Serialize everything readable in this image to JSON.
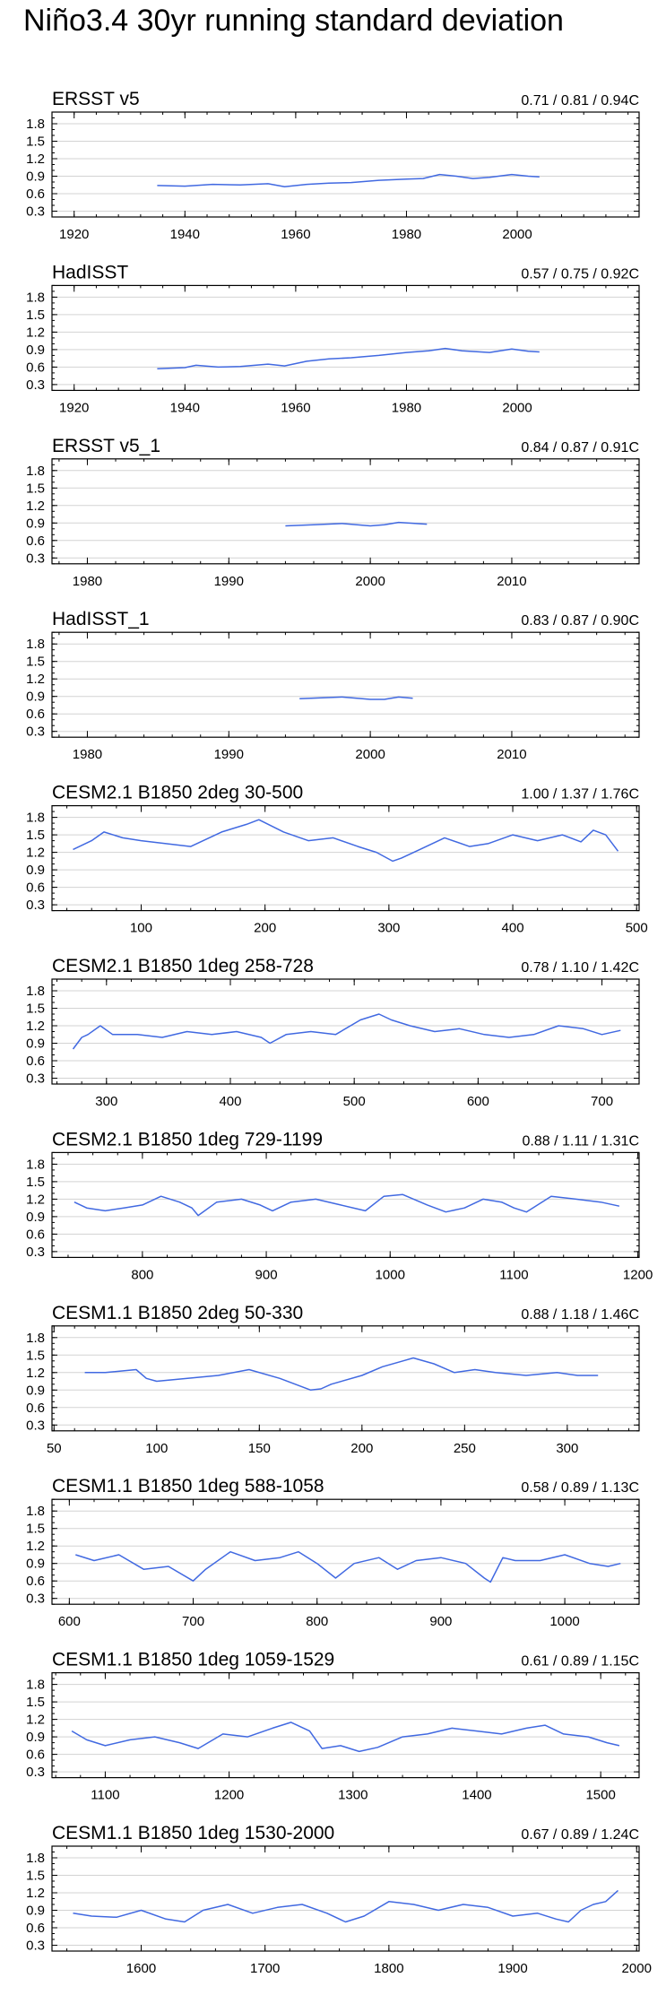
{
  "title": "Niño3.4 30yr running standard deviation",
  "line_color": "#4169e1",
  "grid_color": "#d3d3d3",
  "chart_data": [
    {
      "type": "line",
      "title": "ERSST v5",
      "stats": "0.71 / 0.81 / 0.94C",
      "xlim": [
        1916,
        2022
      ],
      "xticks": [
        1920,
        1940,
        1960,
        1980,
        2000
      ],
      "ylim": [
        0.2,
        2.0
      ],
      "yticks": [
        "0.3",
        "0.6",
        "0.9",
        "1.2",
        "1.5",
        "1.8"
      ],
      "x": [
        1935,
        1940,
        1945,
        1950,
        1955,
        1958,
        1962,
        1966,
        1970,
        1975,
        1980,
        1983,
        1986,
        1989,
        1992,
        1995,
        1999,
        2002,
        2004
      ],
      "y": [
        0.74,
        0.73,
        0.76,
        0.75,
        0.77,
        0.72,
        0.76,
        0.78,
        0.79,
        0.83,
        0.85,
        0.86,
        0.93,
        0.9,
        0.86,
        0.88,
        0.93,
        0.9,
        0.89
      ]
    },
    {
      "type": "line",
      "title": "HadISST",
      "stats": "0.57 / 0.75 / 0.92C",
      "xlim": [
        1916,
        2022
      ],
      "xticks": [
        1920,
        1940,
        1960,
        1980,
        2000
      ],
      "ylim": [
        0.2,
        2.0
      ],
      "yticks": [
        "0.3",
        "0.6",
        "0.9",
        "1.2",
        "1.5",
        "1.8"
      ],
      "x": [
        1935,
        1940,
        1942,
        1946,
        1950,
        1955,
        1958,
        1962,
        1966,
        1970,
        1975,
        1980,
        1984,
        1987,
        1990,
        1995,
        1999,
        2002,
        2004
      ],
      "y": [
        0.57,
        0.59,
        0.63,
        0.6,
        0.61,
        0.65,
        0.62,
        0.7,
        0.74,
        0.76,
        0.8,
        0.85,
        0.88,
        0.92,
        0.88,
        0.85,
        0.91,
        0.87,
        0.86
      ]
    },
    {
      "type": "line",
      "title": "ERSST v5_1",
      "stats": "0.84 / 0.87 / 0.91C",
      "xlim": [
        1977.5,
        2019
      ],
      "xticks": [
        1980,
        1990,
        2000,
        2010
      ],
      "ylim": [
        0.2,
        2.0
      ],
      "yticks": [
        "0.3",
        "0.6",
        "0.9",
        "1.2",
        "1.5",
        "1.8"
      ],
      "x": [
        1994,
        1996,
        1998,
        2000,
        2001,
        2002,
        2004
      ],
      "y": [
        0.85,
        0.87,
        0.89,
        0.85,
        0.87,
        0.91,
        0.88
      ]
    },
    {
      "type": "line",
      "title": "HadISST_1",
      "stats": "0.83 / 0.87 / 0.90C",
      "xlim": [
        1977.5,
        2019
      ],
      "xticks": [
        1980,
        1990,
        2000,
        2010
      ],
      "ylim": [
        0.2,
        2.0
      ],
      "yticks": [
        "0.3",
        "0.6",
        "0.9",
        "1.2",
        "1.5",
        "1.8"
      ],
      "x": [
        1995,
        1997,
        1998,
        2000,
        2001,
        2002,
        2003
      ],
      "y": [
        0.86,
        0.88,
        0.89,
        0.85,
        0.85,
        0.89,
        0.87
      ]
    },
    {
      "type": "line",
      "title": "CESM2.1 B1850 2deg 30-500",
      "stats": "1.00 / 1.37 / 1.76C",
      "xlim": [
        28,
        502
      ],
      "xticks": [
        100,
        200,
        300,
        400,
        500
      ],
      "ylim": [
        0.2,
        2.0
      ],
      "yticks": [
        "0.3",
        "0.6",
        "0.9",
        "1.2",
        "1.5",
        "1.8"
      ],
      "x": [
        45,
        60,
        70,
        85,
        100,
        120,
        140,
        165,
        185,
        195,
        215,
        235,
        255,
        275,
        290,
        303,
        310,
        325,
        345,
        365,
        380,
        400,
        420,
        440,
        455,
        465,
        475,
        485
      ],
      "y": [
        1.25,
        1.4,
        1.55,
        1.45,
        1.4,
        1.35,
        1.3,
        1.55,
        1.68,
        1.76,
        1.55,
        1.4,
        1.45,
        1.3,
        1.2,
        1.05,
        1.1,
        1.25,
        1.45,
        1.3,
        1.35,
        1.5,
        1.4,
        1.5,
        1.38,
        1.58,
        1.5,
        1.22
      ]
    },
    {
      "type": "line",
      "title": "CESM2.1 B1850 1deg 258-728",
      "stats": "0.78 / 1.10 / 1.42C",
      "xlim": [
        256,
        730
      ],
      "xticks": [
        300,
        400,
        500,
        600,
        700
      ],
      "ylim": [
        0.2,
        2.0
      ],
      "yticks": [
        "0.3",
        "0.6",
        "0.9",
        "1.2",
        "1.5",
        "1.8"
      ],
      "x": [
        273,
        280,
        285,
        295,
        305,
        325,
        345,
        365,
        385,
        405,
        425,
        432,
        445,
        465,
        485,
        505,
        520,
        530,
        545,
        565,
        585,
        605,
        625,
        645,
        665,
        685,
        700,
        715
      ],
      "y": [
        0.8,
        1.0,
        1.05,
        1.2,
        1.05,
        1.05,
        1.0,
        1.1,
        1.05,
        1.1,
        1.0,
        0.9,
        1.05,
        1.1,
        1.05,
        1.3,
        1.4,
        1.3,
        1.2,
        1.1,
        1.15,
        1.05,
        1.0,
        1.05,
        1.2,
        1.15,
        1.05,
        1.12
      ]
    },
    {
      "type": "line",
      "title": "CESM2.1 B1850 1deg 729-1199",
      "stats": "0.88 / 1.11 / 1.31C",
      "xlim": [
        727,
        1201
      ],
      "xticks": [
        800,
        900,
        1000,
        1100,
        1200
      ],
      "ylim": [
        0.2,
        2.0
      ],
      "yticks": [
        "0.3",
        "0.6",
        "0.9",
        "1.2",
        "1.5",
        "1.8"
      ],
      "x": [
        745,
        755,
        770,
        785,
        800,
        815,
        830,
        840,
        845,
        860,
        880,
        895,
        905,
        920,
        940,
        960,
        980,
        995,
        1010,
        1030,
        1045,
        1060,
        1075,
        1090,
        1100,
        1110,
        1130,
        1150,
        1170,
        1185
      ],
      "y": [
        1.15,
        1.05,
        1.0,
        1.05,
        1.1,
        1.25,
        1.15,
        1.05,
        0.92,
        1.15,
        1.2,
        1.1,
        1.0,
        1.15,
        1.2,
        1.1,
        1.0,
        1.25,
        1.28,
        1.1,
        0.98,
        1.05,
        1.2,
        1.15,
        1.05,
        0.98,
        1.25,
        1.2,
        1.15,
        1.08
      ]
    },
    {
      "type": "line",
      "title": "CESM1.1 B1850 2deg 50-330",
      "stats": "0.88 / 1.18 / 1.46C",
      "xlim": [
        49,
        335
      ],
      "xticks": [
        50,
        100,
        150,
        200,
        250,
        300
      ],
      "ylim": [
        0.2,
        2.0
      ],
      "yticks": [
        "0.3",
        "0.6",
        "0.9",
        "1.2",
        "1.5",
        "1.8"
      ],
      "x": [
        65,
        75,
        90,
        95,
        100,
        115,
        130,
        145,
        160,
        175,
        180,
        185,
        200,
        210,
        220,
        225,
        235,
        245,
        255,
        265,
        280,
        295,
        305,
        315
      ],
      "y": [
        1.2,
        1.2,
        1.25,
        1.1,
        1.05,
        1.1,
        1.15,
        1.25,
        1.1,
        0.9,
        0.92,
        1.0,
        1.15,
        1.3,
        1.4,
        1.45,
        1.35,
        1.2,
        1.25,
        1.2,
        1.15,
        1.2,
        1.15,
        1.15
      ]
    },
    {
      "type": "line",
      "title": "CESM1.1 B1850 1deg 588-1058",
      "stats": "0.58 / 0.89 / 1.13C",
      "xlim": [
        586,
        1060
      ],
      "xticks": [
        600,
        700,
        800,
        900,
        1000
      ],
      "ylim": [
        0.2,
        2.0
      ],
      "yticks": [
        "0.3",
        "0.6",
        "0.9",
        "1.2",
        "1.5",
        "1.8"
      ],
      "x": [
        605,
        620,
        640,
        660,
        680,
        700,
        710,
        730,
        750,
        770,
        785,
        800,
        815,
        830,
        850,
        865,
        880,
        900,
        920,
        935,
        940,
        950,
        960,
        980,
        1000,
        1020,
        1035,
        1045
      ],
      "y": [
        1.05,
        0.95,
        1.05,
        0.8,
        0.85,
        0.6,
        0.8,
        1.1,
        0.95,
        1.0,
        1.1,
        0.9,
        0.65,
        0.9,
        1.0,
        0.8,
        0.95,
        1.0,
        0.9,
        0.65,
        0.58,
        1.0,
        0.95,
        0.95,
        1.05,
        0.9,
        0.85,
        0.9
      ]
    },
    {
      "type": "line",
      "title": "CESM1.1 B1850 1deg 1059-1529",
      "stats": "0.61 / 0.89 / 1.15C",
      "xlim": [
        1057,
        1531
      ],
      "xticks": [
        1100,
        1200,
        1300,
        1400,
        1500
      ],
      "ylim": [
        0.2,
        2.0
      ],
      "yticks": [
        "0.3",
        "0.6",
        "0.9",
        "1.2",
        "1.5",
        "1.8"
      ],
      "x": [
        1073,
        1085,
        1100,
        1120,
        1140,
        1160,
        1175,
        1195,
        1215,
        1235,
        1250,
        1265,
        1275,
        1290,
        1305,
        1320,
        1340,
        1360,
        1380,
        1400,
        1420,
        1440,
        1455,
        1470,
        1490,
        1505,
        1515
      ],
      "y": [
        1.0,
        0.85,
        0.75,
        0.85,
        0.9,
        0.8,
        0.7,
        0.95,
        0.9,
        1.05,
        1.15,
        1.0,
        0.7,
        0.75,
        0.65,
        0.72,
        0.9,
        0.95,
        1.05,
        1.0,
        0.95,
        1.05,
        1.1,
        0.95,
        0.9,
        0.8,
        0.75
      ]
    },
    {
      "type": "line",
      "title": "CESM1.1 B1850 1deg 1530-2000",
      "stats": "0.67 / 0.89 / 1.24C",
      "xlim": [
        1528,
        2002
      ],
      "xticks": [
        1600,
        1700,
        1800,
        1900,
        2000
      ],
      "ylim": [
        0.2,
        2.0
      ],
      "yticks": [
        "0.3",
        "0.6",
        "0.9",
        "1.2",
        "1.5",
        "1.8"
      ],
      "x": [
        1545,
        1560,
        1580,
        1600,
        1620,
        1635,
        1650,
        1670,
        1690,
        1710,
        1730,
        1750,
        1765,
        1780,
        1800,
        1820,
        1840,
        1860,
        1880,
        1900,
        1920,
        1935,
        1945,
        1955,
        1965,
        1975,
        1985
      ],
      "y": [
        0.85,
        0.8,
        0.78,
        0.9,
        0.75,
        0.7,
        0.9,
        1.0,
        0.85,
        0.95,
        1.0,
        0.85,
        0.7,
        0.8,
        1.05,
        1.0,
        0.9,
        1.0,
        0.95,
        0.8,
        0.85,
        0.75,
        0.7,
        0.9,
        1.0,
        1.05,
        1.24
      ]
    }
  ]
}
